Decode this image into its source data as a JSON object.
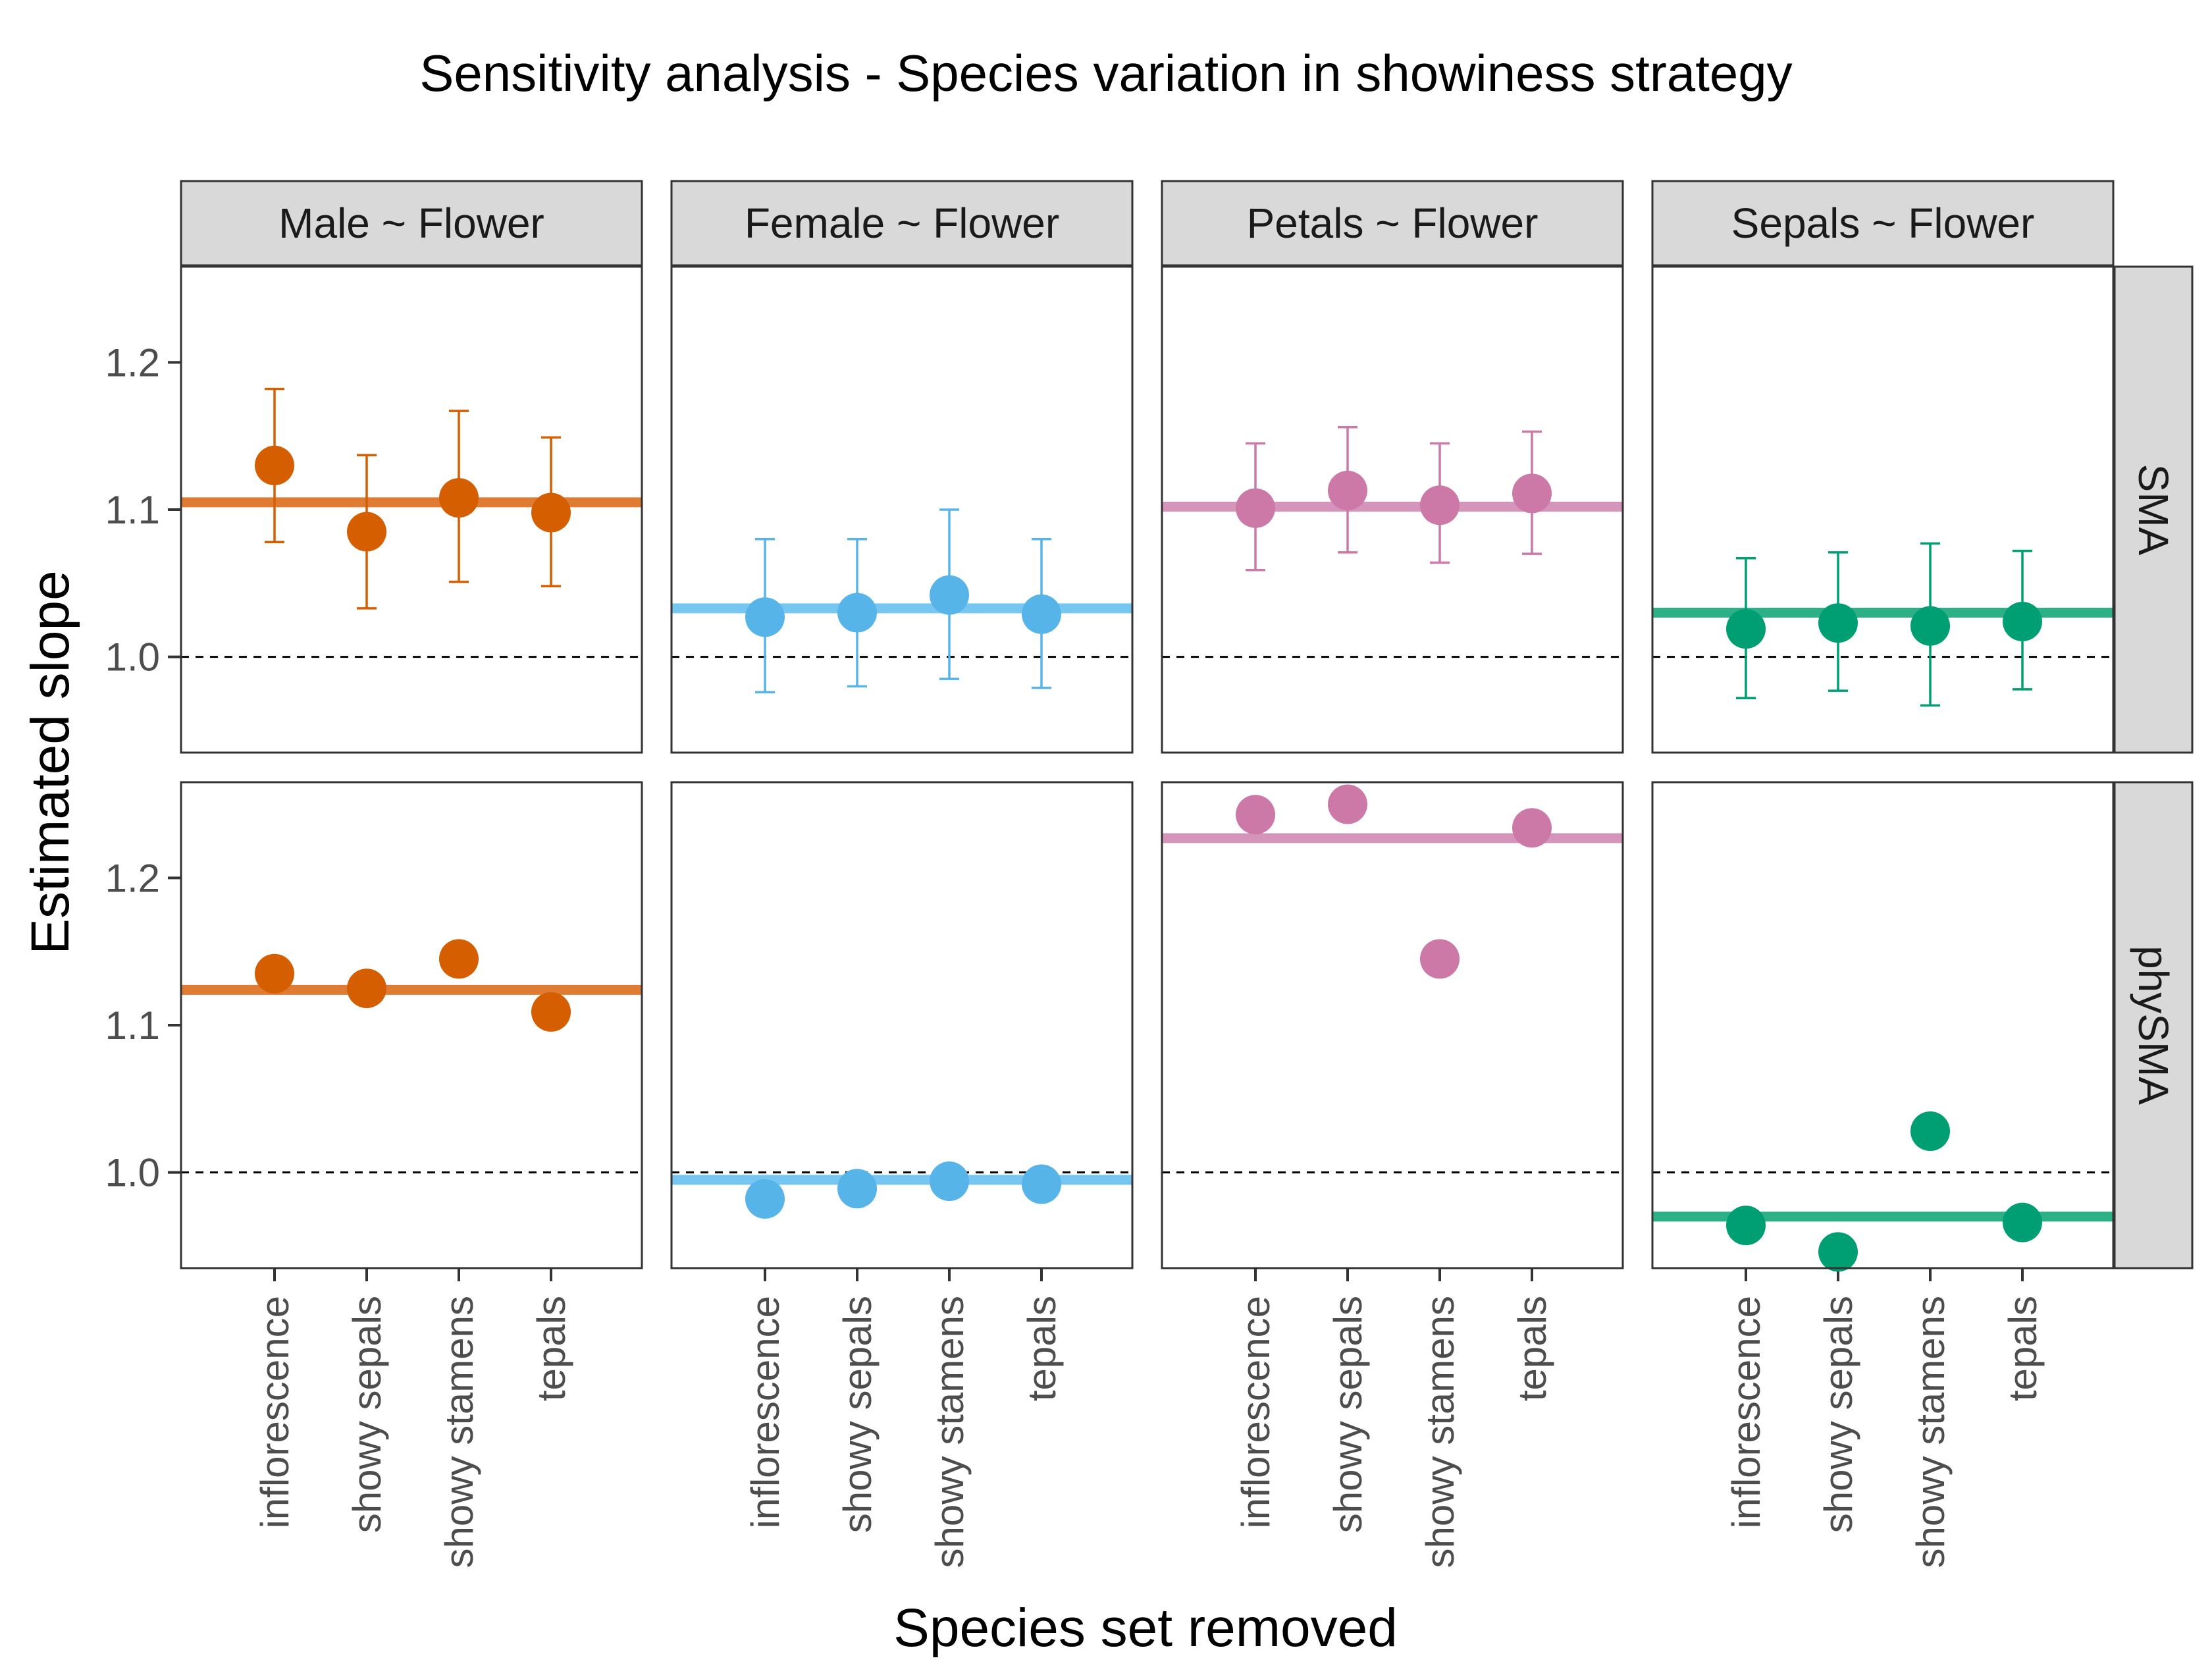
{
  "chart_data": {
    "type": "scatter",
    "title": "Sensitivity analysis - Species variation in showiness strategy",
    "xlabel": "Species set removed",
    "ylabel": "Estimated slope",
    "ylim": [
      0.935,
      1.265
    ],
    "yticks": [
      1.0,
      1.1,
      1.2
    ],
    "ytick_labels": [
      "1.0",
      "1.1",
      "1.2"
    ],
    "reference_line": 1.0,
    "categories": [
      "inflorescence",
      "showy sepals",
      "showy stamens",
      "tepals"
    ],
    "columns": [
      {
        "label": "Male ~ Flower",
        "color": "#D55E00",
        "line_color": "#E07B34"
      },
      {
        "label": "Female ~ Flower",
        "color": "#56B4E9",
        "line_color": "#76C6F2"
      },
      {
        "label": "Petals ~ Flower",
        "color": "#CC79A7",
        "line_color": "#D594BA"
      },
      {
        "label": "Sepals ~ Flower",
        "color": "#009E73",
        "line_color": "#2DB086"
      }
    ],
    "rows": [
      "SMA",
      "phySMA"
    ],
    "panels": [
      {
        "row": "SMA",
        "column": "Male ~ Flower",
        "overall": 1.105,
        "values": [
          1.13,
          1.085,
          1.108,
          1.098
        ],
        "lower": [
          1.078,
          1.033,
          1.051,
          1.048
        ],
        "upper": [
          1.182,
          1.137,
          1.167,
          1.149
        ]
      },
      {
        "row": "SMA",
        "column": "Female ~ Flower",
        "overall": 1.033,
        "values": [
          1.027,
          1.03,
          1.042,
          1.029
        ],
        "lower": [
          0.976,
          0.98,
          0.985,
          0.979
        ],
        "upper": [
          1.08,
          1.08,
          1.1,
          1.08
        ]
      },
      {
        "row": "SMA",
        "column": "Petals ~ Flower",
        "overall": 1.102,
        "values": [
          1.101,
          1.113,
          1.103,
          1.111
        ],
        "lower": [
          1.059,
          1.071,
          1.064,
          1.07
        ],
        "upper": [
          1.145,
          1.156,
          1.145,
          1.153
        ]
      },
      {
        "row": "SMA",
        "column": "Sepals ~ Flower",
        "overall": 1.03,
        "values": [
          1.019,
          1.023,
          1.021,
          1.024
        ],
        "lower": [
          0.972,
          0.977,
          0.967,
          0.978
        ],
        "upper": [
          1.067,
          1.071,
          1.077,
          1.072
        ]
      },
      {
        "row": "phySMA",
        "column": "Male ~ Flower",
        "overall": 1.124,
        "values": [
          1.135,
          1.125,
          1.145,
          1.109
        ]
      },
      {
        "row": "phySMA",
        "column": "Female ~ Flower",
        "overall": 0.995,
        "values": [
          0.982,
          0.989,
          0.994,
          0.992
        ]
      },
      {
        "row": "phySMA",
        "column": "Petals ~ Flower",
        "overall": 1.227,
        "values": [
          1.243,
          1.25,
          1.145,
          1.234
        ]
      },
      {
        "row": "phySMA",
        "column": "Sepals ~ Flower",
        "overall": 0.97,
        "values": [
          0.964,
          0.946,
          1.028,
          0.966
        ]
      }
    ]
  }
}
